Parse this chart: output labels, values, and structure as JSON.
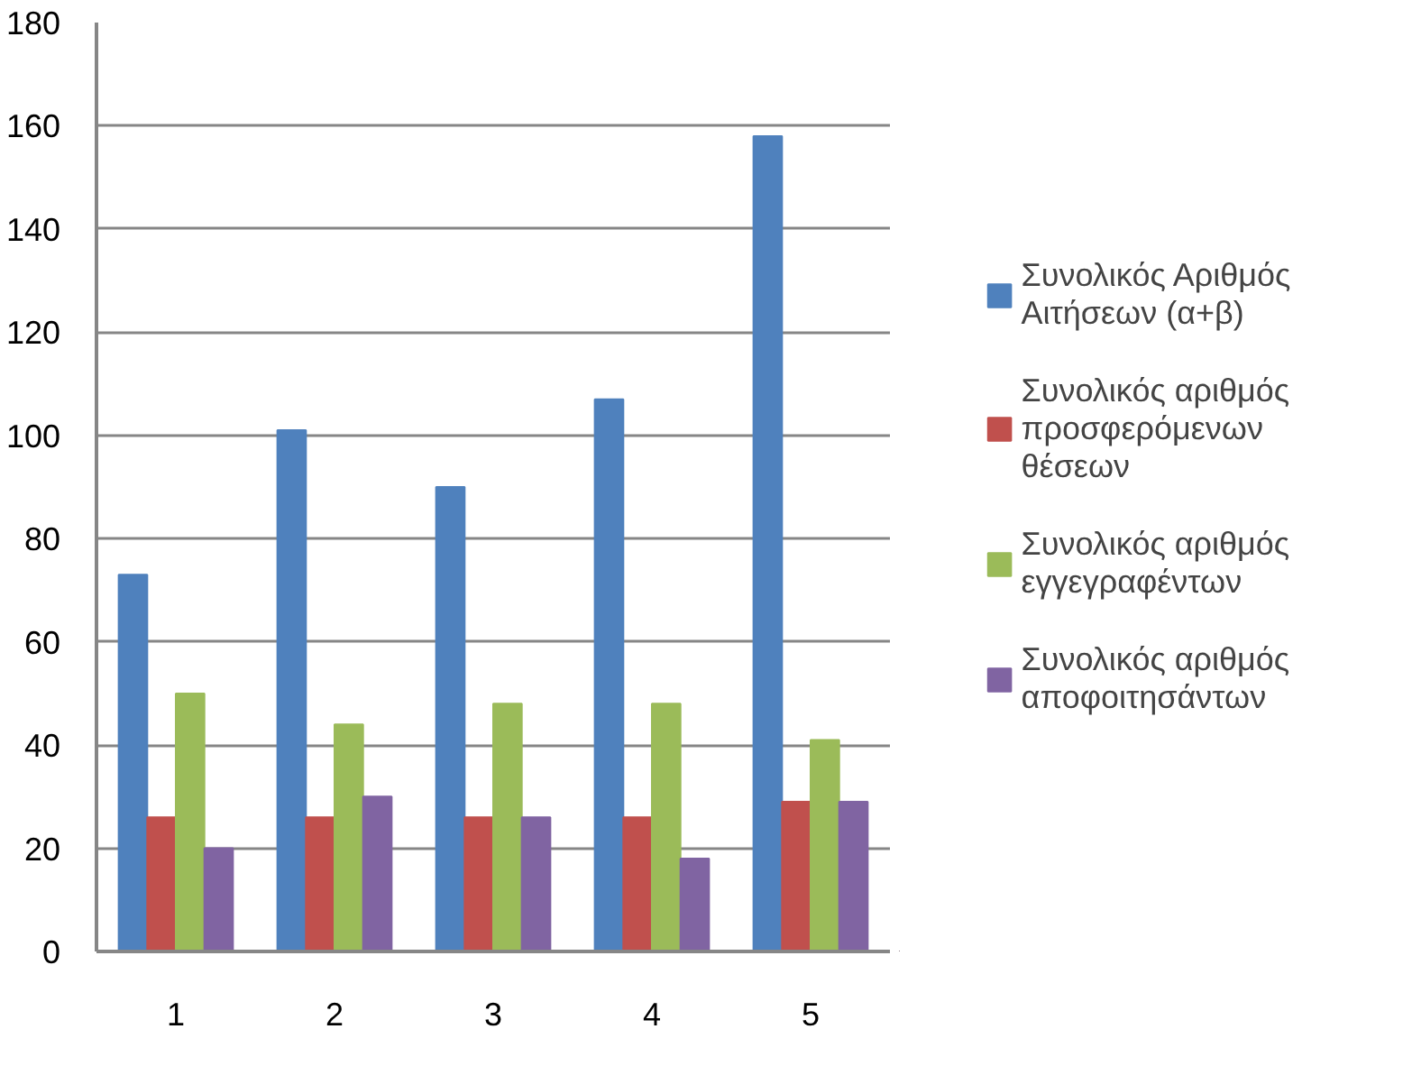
{
  "chart_data": {
    "type": "bar",
    "categories": [
      "1",
      "2",
      "3",
      "4",
      "5"
    ],
    "series": [
      {
        "name": "Συνολικός Αριθμός Αιτήσεων (α+β)",
        "color": "#4f81bd",
        "values": [
          73,
          101,
          90,
          107,
          158
        ]
      },
      {
        "name": "Συνολικός αριθμός προσφερόμενων θέσεων",
        "color": "#c0504d",
        "values": [
          26,
          26,
          26,
          26,
          29
        ]
      },
      {
        "name": "Συνολικός αριθμός εγγεγραφέντων",
        "color": "#9bbb59",
        "values": [
          50,
          44,
          48,
          48,
          41
        ]
      },
      {
        "name": "Συνολικός αριθμός αποφοιτησάντων",
        "color": "#8064a2",
        "values": [
          20,
          30,
          26,
          18,
          29
        ]
      }
    ],
    "ylim": [
      0,
      180
    ],
    "yticks": [
      0,
      20,
      40,
      60,
      80,
      100,
      120,
      140,
      160,
      180
    ],
    "grid": "y",
    "legend": "right"
  }
}
